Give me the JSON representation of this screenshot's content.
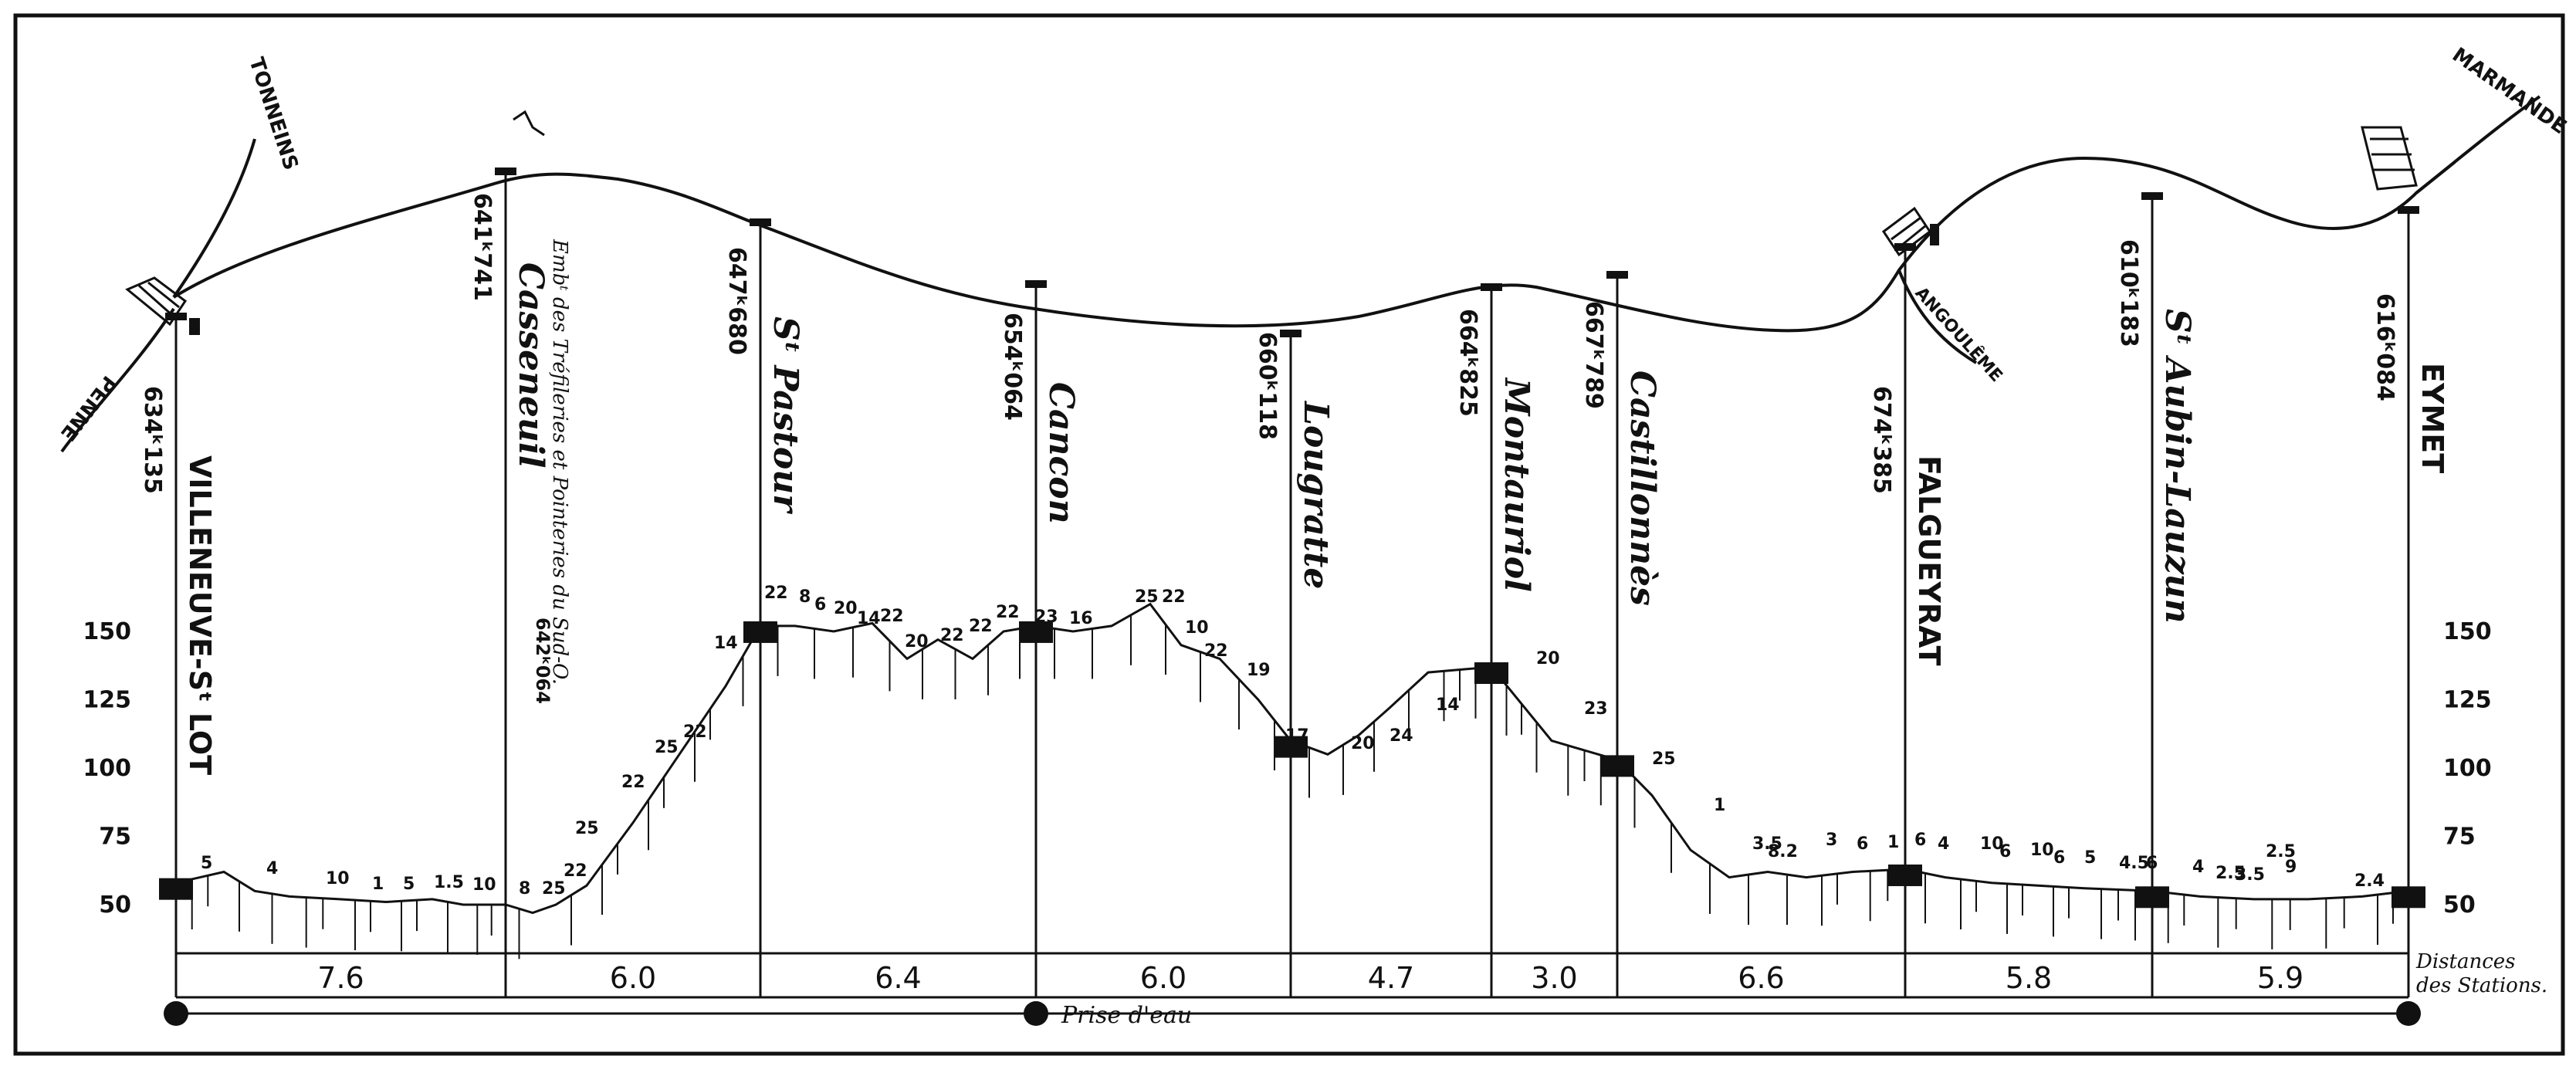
{
  "colors": {
    "ink": "#111111",
    "paper": "#ffffff"
  },
  "stations": [
    {
      "id": "villeneuve",
      "name": "VILLENEUVE-Sᵗ LOT",
      "km": "634ᵏ135",
      "style": "caps"
    },
    {
      "id": "casseneuil",
      "name": "Casseneuil",
      "km": "641ᵏ741",
      "note": "Embᵗ des Tréfileries et Pointeries du Sud-O.",
      "note_km": "642ᵏ064",
      "style": "italic"
    },
    {
      "id": "st-pastour",
      "name": "Sᵗ Pastour",
      "km": "647ᵏ680",
      "style": "italic"
    },
    {
      "id": "cancon",
      "name": "Cancon",
      "km": "654ᵏ064",
      "style": "italic"
    },
    {
      "id": "lougratte",
      "name": "Lougratte",
      "km": "660ᵏ118",
      "style": "italic"
    },
    {
      "id": "montauriol",
      "name": "Montauriol",
      "km": "664ᵏ825",
      "style": "italic"
    },
    {
      "id": "castillonnes",
      "name": "Castillonnès",
      "km": "667ᵏ789",
      "style": "italic"
    },
    {
      "id": "falgueyrat",
      "name": "FALGUEYRAT",
      "km": "674ᵏ385",
      "style": "caps"
    },
    {
      "id": "st-aubin",
      "name": "Sᵗ Aubin-Lauzun",
      "km": "610ᵏ183",
      "style": "italic"
    },
    {
      "id": "eymet",
      "name": "EYMET",
      "km": "616ᵏ084",
      "style": "caps"
    }
  ],
  "branches": {
    "tonneins": "TONNEINS",
    "penne": "PENNE",
    "angouleme": "ANGOULÊME",
    "marmande": "MARMANDE"
  },
  "altitude_ticks_left": [
    "150",
    "125",
    "100",
    "75",
    "50"
  ],
  "altitude_ticks_right": [
    "150",
    "125",
    "100",
    "75",
    "50"
  ],
  "distances": [
    "7.6",
    "6.0",
    "6.4",
    "6.0",
    "4.7",
    "3.0",
    "6.6",
    "5.8",
    "5.9"
  ],
  "distances_label_1": "Distances",
  "distances_label_2": "des Stations.",
  "prise_deau": "Prise d'eau",
  "gradients": [
    "5",
    "4",
    "10",
    "1",
    "5",
    "1.5",
    "10",
    "8",
    "25",
    "22",
    "25",
    "22",
    "25",
    "22",
    "14",
    "22",
    "8",
    "6",
    "20",
    "14",
    "22",
    "20",
    "22",
    "22",
    "22",
    "23",
    "16",
    "25",
    "22",
    "10",
    "22",
    "19",
    "17",
    "20",
    "24",
    "14",
    "20",
    "23",
    "25",
    "1",
    "3.5",
    "8.2",
    "3",
    "6",
    "1",
    "6",
    "4",
    "10",
    "6",
    "10",
    "6",
    "5",
    "4.5",
    "6",
    "4",
    "2.5",
    "3.5",
    "2.5",
    "9",
    "2.4"
  ]
}
